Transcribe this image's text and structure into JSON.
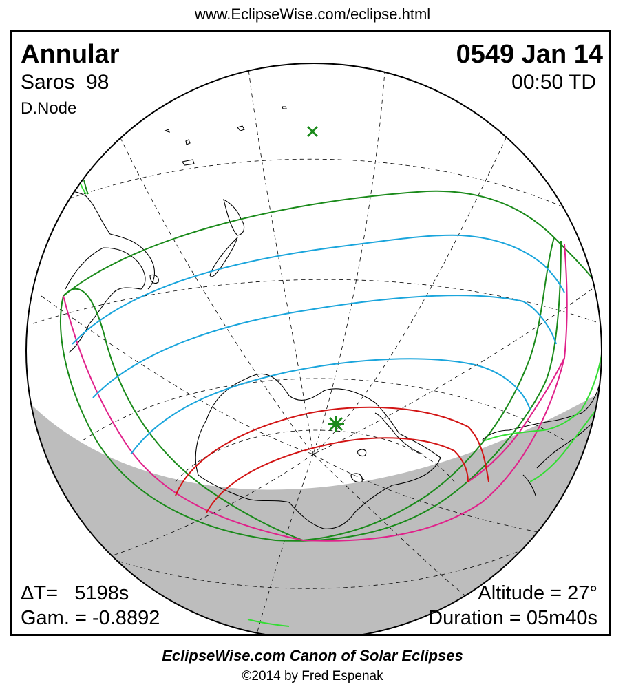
{
  "header": {
    "url": "www.EclipseWise.com/eclipse.html"
  },
  "eclipse": {
    "type": "Annular",
    "saros_label": "Saros",
    "saros_number": "98",
    "node": "D.Node",
    "date": "0549 Jan 14",
    "time": "00:50 TD",
    "delta_t_label": "ΔT=",
    "delta_t_value": "5198s",
    "gamma_label": "Gam. =",
    "gamma_value": "-0.8892",
    "altitude": "Altitude = 27°",
    "duration": "Duration = 05m40s"
  },
  "footer": {
    "canon": "EclipseWise.com Canon of Solar Eclipses",
    "copyright": "©2014 by Fred Espenak"
  },
  "colors": {
    "night": "#bdbdbd",
    "penumbral": "#1a8a1a",
    "contact": "#e0218a",
    "magnitude": "#1aa5dc",
    "central": "#d21414",
    "coast": "#000000",
    "graticule": "#000000",
    "rise_set": "#33dd33"
  },
  "markers": {
    "greatest_eclipse": "green-star-icon",
    "subsolar_point": "green-cross-icon"
  }
}
